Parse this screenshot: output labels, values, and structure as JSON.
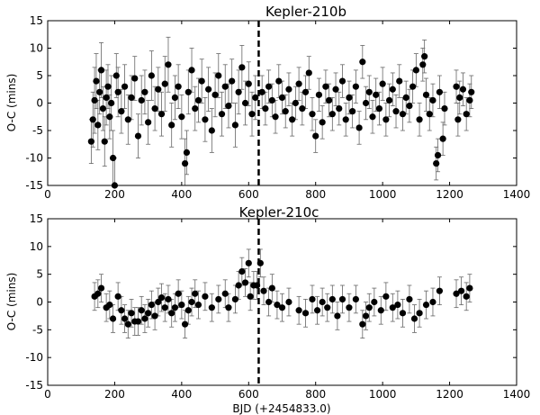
{
  "chart_data": [
    {
      "type": "scatter",
      "title": "Kepler-210b",
      "xlabel": "",
      "ylabel": "O-C (mins)",
      "xlim": [
        0,
        1400
      ],
      "ylim": [
        -15,
        15
      ],
      "x_ticks": [
        "0",
        "200",
        "400",
        "600",
        "800",
        "1000",
        "1200",
        "1400"
      ],
      "y_ticks": [
        "15",
        "10",
        "5",
        "0",
        "-5",
        "-10",
        "-15"
      ],
      "vline_x": 630,
      "points": [
        {
          "x": 130,
          "y": -7.0,
          "err": 4.0
        },
        {
          "x": 135,
          "y": -3.0,
          "err": 5.0
        },
        {
          "x": 140,
          "y": 0.5,
          "err": 6.0
        },
        {
          "x": 145,
          "y": 4.0,
          "err": 5.0
        },
        {
          "x": 150,
          "y": -4.0,
          "err": 4.5
        },
        {
          "x": 155,
          "y": 2.0,
          "err": 4.0
        },
        {
          "x": 160,
          "y": 6.0,
          "err": 5.0
        },
        {
          "x": 165,
          "y": -1.0,
          "err": 4.0
        },
        {
          "x": 170,
          "y": -7.0,
          "err": 4.5
        },
        {
          "x": 175,
          "y": 1.0,
          "err": 5.0
        },
        {
          "x": 180,
          "y": 3.0,
          "err": 4.0
        },
        {
          "x": 185,
          "y": -2.5,
          "err": 4.0
        },
        {
          "x": 190,
          "y": 0.0,
          "err": 5.0
        },
        {
          "x": 195,
          "y": -10.0,
          "err": 5.0
        },
        {
          "x": 200,
          "y": -15.0,
          "err": 5.0
        },
        {
          "x": 205,
          "y": 5.0,
          "err": 4.0
        },
        {
          "x": 210,
          "y": 2.0,
          "err": 4.5
        },
        {
          "x": 220,
          "y": -1.5,
          "err": 4.0
        },
        {
          "x": 230,
          "y": 3.0,
          "err": 4.0
        },
        {
          "x": 240,
          "y": -3.0,
          "err": 4.5
        },
        {
          "x": 250,
          "y": 1.0,
          "err": 4.0
        },
        {
          "x": 260,
          "y": 4.5,
          "err": 4.0
        },
        {
          "x": 270,
          "y": -6.0,
          "err": 4.0
        },
        {
          "x": 280,
          "y": 0.5,
          "err": 4.5
        },
        {
          "x": 290,
          "y": 2.0,
          "err": 4.0
        },
        {
          "x": 300,
          "y": -3.5,
          "err": 4.0
        },
        {
          "x": 310,
          "y": 5.0,
          "err": 4.5
        },
        {
          "x": 320,
          "y": -1.0,
          "err": 4.0
        },
        {
          "x": 330,
          "y": 2.5,
          "err": 4.0
        },
        {
          "x": 340,
          "y": -2.0,
          "err": 4.0
        },
        {
          "x": 350,
          "y": 3.5,
          "err": 5.0
        },
        {
          "x": 360,
          "y": 7.0,
          "err": 5.0
        },
        {
          "x": 370,
          "y": -4.0,
          "err": 4.0
        },
        {
          "x": 380,
          "y": 1.0,
          "err": 4.0
        },
        {
          "x": 390,
          "y": 3.0,
          "err": 4.0
        },
        {
          "x": 400,
          "y": -2.5,
          "err": 4.0
        },
        {
          "x": 410,
          "y": -11.0,
          "err": 4.5
        },
        {
          "x": 415,
          "y": -9.0,
          "err": 4.0
        },
        {
          "x": 420,
          "y": 2.0,
          "err": 4.0
        },
        {
          "x": 430,
          "y": 6.0,
          "err": 4.0
        },
        {
          "x": 440,
          "y": -1.0,
          "err": 4.0
        },
        {
          "x": 450,
          "y": 0.5,
          "err": 4.0
        },
        {
          "x": 460,
          "y": 4.0,
          "err": 4.0
        },
        {
          "x": 470,
          "y": -3.0,
          "err": 4.0
        },
        {
          "x": 480,
          "y": 2.5,
          "err": 4.0
        },
        {
          "x": 490,
          "y": -5.0,
          "err": 4.0
        },
        {
          "x": 500,
          "y": 1.5,
          "err": 4.0
        },
        {
          "x": 510,
          "y": 5.0,
          "err": 4.0
        },
        {
          "x": 520,
          "y": -2.0,
          "err": 4.0
        },
        {
          "x": 530,
          "y": 3.0,
          "err": 4.0
        },
        {
          "x": 540,
          "y": -0.5,
          "err": 4.0
        },
        {
          "x": 550,
          "y": 4.0,
          "err": 4.0
        },
        {
          "x": 560,
          "y": -4.0,
          "err": 4.0
        },
        {
          "x": 570,
          "y": 2.0,
          "err": 4.0
        },
        {
          "x": 580,
          "y": 6.5,
          "err": 4.0
        },
        {
          "x": 590,
          "y": 0.0,
          "err": 4.0
        },
        {
          "x": 600,
          "y": 3.5,
          "err": 4.0
        },
        {
          "x": 610,
          "y": -2.0,
          "err": 4.0
        },
        {
          "x": 620,
          "y": 1.0,
          "err": 4.0
        },
        {
          "x": 640,
          "y": 2.0,
          "err": 3.0
        },
        {
          "x": 650,
          "y": -1.0,
          "err": 3.0
        },
        {
          "x": 660,
          "y": 3.0,
          "err": 3.0
        },
        {
          "x": 670,
          "y": 0.5,
          "err": 3.0
        },
        {
          "x": 680,
          "y": -2.5,
          "err": 3.0
        },
        {
          "x": 690,
          "y": 4.0,
          "err": 3.0
        },
        {
          "x": 700,
          "y": 1.0,
          "err": 3.0
        },
        {
          "x": 710,
          "y": -1.5,
          "err": 3.0
        },
        {
          "x": 720,
          "y": 2.5,
          "err": 3.0
        },
        {
          "x": 730,
          "y": -3.0,
          "err": 3.0
        },
        {
          "x": 740,
          "y": 0.0,
          "err": 3.0
        },
        {
          "x": 750,
          "y": 3.5,
          "err": 3.0
        },
        {
          "x": 760,
          "y": -1.0,
          "err": 3.0
        },
        {
          "x": 770,
          "y": 2.0,
          "err": 3.0
        },
        {
          "x": 780,
          "y": 5.5,
          "err": 3.0
        },
        {
          "x": 790,
          "y": -2.0,
          "err": 3.0
        },
        {
          "x": 800,
          "y": -6.0,
          "err": 3.0
        },
        {
          "x": 810,
          "y": 1.5,
          "err": 3.0
        },
        {
          "x": 820,
          "y": -3.5,
          "err": 3.0
        },
        {
          "x": 830,
          "y": 3.0,
          "err": 3.0
        },
        {
          "x": 840,
          "y": 0.5,
          "err": 3.0
        },
        {
          "x": 850,
          "y": -2.0,
          "err": 3.0
        },
        {
          "x": 860,
          "y": 2.5,
          "err": 3.0
        },
        {
          "x": 870,
          "y": -1.0,
          "err": 3.0
        },
        {
          "x": 880,
          "y": 4.0,
          "err": 3.0
        },
        {
          "x": 890,
          "y": -3.0,
          "err": 3.0
        },
        {
          "x": 900,
          "y": 1.0,
          "err": 3.0
        },
        {
          "x": 910,
          "y": -1.5,
          "err": 3.0
        },
        {
          "x": 920,
          "y": 3.0,
          "err": 3.0
        },
        {
          "x": 930,
          "y": -4.5,
          "err": 3.0
        },
        {
          "x": 940,
          "y": 7.5,
          "err": 3.0
        },
        {
          "x": 950,
          "y": 0.0,
          "err": 3.0
        },
        {
          "x": 960,
          "y": 2.0,
          "err": 3.0
        },
        {
          "x": 970,
          "y": -2.5,
          "err": 3.0
        },
        {
          "x": 980,
          "y": 1.5,
          "err": 3.0
        },
        {
          "x": 990,
          "y": -1.0,
          "err": 3.0
        },
        {
          "x": 1000,
          "y": 3.5,
          "err": 3.0
        },
        {
          "x": 1010,
          "y": -3.0,
          "err": 3.0
        },
        {
          "x": 1020,
          "y": 0.5,
          "err": 3.0
        },
        {
          "x": 1030,
          "y": 2.5,
          "err": 3.0
        },
        {
          "x": 1040,
          "y": -1.5,
          "err": 3.0
        },
        {
          "x": 1050,
          "y": 4.0,
          "err": 3.0
        },
        {
          "x": 1060,
          "y": -2.0,
          "err": 3.0
        },
        {
          "x": 1070,
          "y": 1.0,
          "err": 3.0
        },
        {
          "x": 1080,
          "y": -0.5,
          "err": 3.0
        },
        {
          "x": 1090,
          "y": 3.0,
          "err": 3.0
        },
        {
          "x": 1100,
          "y": 6.0,
          "err": 3.0
        },
        {
          "x": 1110,
          "y": -3.0,
          "err": 3.0
        },
        {
          "x": 1120,
          "y": 7.0,
          "err": 3.0
        },
        {
          "x": 1125,
          "y": 8.5,
          "err": 3.0
        },
        {
          "x": 1130,
          "y": 1.5,
          "err": 3.0
        },
        {
          "x": 1140,
          "y": -2.0,
          "err": 3.0
        },
        {
          "x": 1150,
          "y": 0.5,
          "err": 3.0
        },
        {
          "x": 1160,
          "y": -11.0,
          "err": 3.0
        },
        {
          "x": 1165,
          "y": -9.5,
          "err": 3.0
        },
        {
          "x": 1170,
          "y": 2.0,
          "err": 3.0
        },
        {
          "x": 1180,
          "y": -6.5,
          "err": 3.0
        },
        {
          "x": 1185,
          "y": -1.0,
          "err": 3.0
        },
        {
          "x": 1220,
          "y": 3.0,
          "err": 3.0
        },
        {
          "x": 1225,
          "y": -3.0,
          "err": 3.0
        },
        {
          "x": 1230,
          "y": 1.0,
          "err": 3.0
        },
        {
          "x": 1240,
          "y": 2.5,
          "err": 3.0
        },
        {
          "x": 1250,
          "y": -2.0,
          "err": 3.0
        },
        {
          "x": 1260,
          "y": 0.5,
          "err": 3.0
        },
        {
          "x": 1265,
          "y": 2.0,
          "err": 3.0
        }
      ]
    },
    {
      "type": "scatter",
      "title": "Kepler-210c",
      "xlabel": "BJD (+2454833.0)",
      "ylabel": "O-C (mins)",
      "xlim": [
        0,
        1400
      ],
      "ylim": [
        -15,
        15
      ],
      "x_ticks": [
        "0",
        "200",
        "400",
        "600",
        "800",
        "1000",
        "1200",
        "1400"
      ],
      "y_ticks": [
        "15",
        "10",
        "5",
        "0",
        "-5",
        "-10",
        "-15"
      ],
      "vline_x": 630,
      "points": [
        {
          "x": 140,
          "y": 1.0,
          "err": 2.5
        },
        {
          "x": 150,
          "y": 1.5,
          "err": 2.5
        },
        {
          "x": 160,
          "y": 2.5,
          "err": 2.5
        },
        {
          "x": 175,
          "y": -1.0,
          "err": 2.5
        },
        {
          "x": 185,
          "y": -0.5,
          "err": 2.5
        },
        {
          "x": 195,
          "y": -3.0,
          "err": 2.5
        },
        {
          "x": 210,
          "y": 1.0,
          "err": 2.5
        },
        {
          "x": 220,
          "y": -1.5,
          "err": 2.5
        },
        {
          "x": 230,
          "y": -3.0,
          "err": 2.5
        },
        {
          "x": 240,
          "y": -4.0,
          "err": 2.5
        },
        {
          "x": 250,
          "y": -2.0,
          "err": 2.5
        },
        {
          "x": 260,
          "y": -3.5,
          "err": 2.5
        },
        {
          "x": 270,
          "y": -3.5,
          "err": 2.5
        },
        {
          "x": 280,
          "y": -1.5,
          "err": 2.5
        },
        {
          "x": 290,
          "y": -3.0,
          "err": 2.5
        },
        {
          "x": 300,
          "y": -2.0,
          "err": 2.5
        },
        {
          "x": 310,
          "y": -0.5,
          "err": 2.5
        },
        {
          "x": 320,
          "y": -2.5,
          "err": 2.5
        },
        {
          "x": 330,
          "y": 0.0,
          "err": 2.5
        },
        {
          "x": 340,
          "y": 0.8,
          "err": 2.5
        },
        {
          "x": 350,
          "y": -1.0,
          "err": 2.5
        },
        {
          "x": 360,
          "y": 0.5,
          "err": 2.5
        },
        {
          "x": 370,
          "y": -2.0,
          "err": 2.5
        },
        {
          "x": 380,
          "y": -1.0,
          "err": 2.5
        },
        {
          "x": 390,
          "y": 1.5,
          "err": 2.5
        },
        {
          "x": 400,
          "y": -0.5,
          "err": 2.5
        },
        {
          "x": 410,
          "y": -4.0,
          "err": 2.5
        },
        {
          "x": 420,
          "y": -1.5,
          "err": 2.5
        },
        {
          "x": 430,
          "y": 0.0,
          "err": 2.5
        },
        {
          "x": 440,
          "y": 1.5,
          "err": 2.5
        },
        {
          "x": 450,
          "y": -0.5,
          "err": 2.5
        },
        {
          "x": 470,
          "y": 1.0,
          "err": 2.5
        },
        {
          "x": 490,
          "y": -1.0,
          "err": 2.5
        },
        {
          "x": 510,
          "y": 0.5,
          "err": 2.5
        },
        {
          "x": 530,
          "y": 1.5,
          "err": 2.5
        },
        {
          "x": 540,
          "y": -1.0,
          "err": 2.5
        },
        {
          "x": 560,
          "y": 0.5,
          "err": 2.5
        },
        {
          "x": 570,
          "y": 3.0,
          "err": 2.5
        },
        {
          "x": 580,
          "y": 5.5,
          "err": 2.5
        },
        {
          "x": 590,
          "y": 3.5,
          "err": 2.5
        },
        {
          "x": 600,
          "y": 7.0,
          "err": 2.5
        },
        {
          "x": 605,
          "y": 1.0,
          "err": 2.5
        },
        {
          "x": 615,
          "y": 3.0,
          "err": 2.5
        },
        {
          "x": 625,
          "y": 3.0,
          "err": 2.5
        },
        {
          "x": 635,
          "y": 7.0,
          "err": 2.5
        },
        {
          "x": 645,
          "y": 2.0,
          "err": 2.5
        },
        {
          "x": 660,
          "y": 0.0,
          "err": 2.5
        },
        {
          "x": 670,
          "y": 2.5,
          "err": 2.5
        },
        {
          "x": 685,
          "y": -0.5,
          "err": 2.5
        },
        {
          "x": 700,
          "y": -1.0,
          "err": 2.5
        },
        {
          "x": 720,
          "y": 0.0,
          "err": 2.5
        },
        {
          "x": 750,
          "y": -1.5,
          "err": 2.5
        },
        {
          "x": 770,
          "y": -2.0,
          "err": 2.5
        },
        {
          "x": 790,
          "y": 0.5,
          "err": 2.5
        },
        {
          "x": 805,
          "y": -1.5,
          "err": 2.5
        },
        {
          "x": 820,
          "y": 0.0,
          "err": 2.5
        },
        {
          "x": 835,
          "y": -1.0,
          "err": 2.5
        },
        {
          "x": 850,
          "y": 0.5,
          "err": 2.5
        },
        {
          "x": 865,
          "y": -2.5,
          "err": 2.5
        },
        {
          "x": 880,
          "y": 0.5,
          "err": 2.5
        },
        {
          "x": 900,
          "y": -1.0,
          "err": 2.5
        },
        {
          "x": 920,
          "y": 0.5,
          "err": 2.5
        },
        {
          "x": 940,
          "y": -4.0,
          "err": 2.5
        },
        {
          "x": 950,
          "y": -2.5,
          "err": 2.5
        },
        {
          "x": 960,
          "y": -1.0,
          "err": 2.5
        },
        {
          "x": 975,
          "y": 0.0,
          "err": 2.5
        },
        {
          "x": 995,
          "y": -1.5,
          "err": 2.5
        },
        {
          "x": 1010,
          "y": 1.0,
          "err": 2.5
        },
        {
          "x": 1030,
          "y": -1.0,
          "err": 2.5
        },
        {
          "x": 1045,
          "y": -0.5,
          "err": 2.5
        },
        {
          "x": 1060,
          "y": -2.0,
          "err": 2.5
        },
        {
          "x": 1080,
          "y": 0.5,
          "err": 2.5
        },
        {
          "x": 1095,
          "y": -3.0,
          "err": 2.5
        },
        {
          "x": 1110,
          "y": -2.0,
          "err": 2.5
        },
        {
          "x": 1130,
          "y": -0.5,
          "err": 2.5
        },
        {
          "x": 1150,
          "y": 0.0,
          "err": 2.5
        },
        {
          "x": 1170,
          "y": 2.0,
          "err": 2.5
        },
        {
          "x": 1220,
          "y": 1.5,
          "err": 2.5
        },
        {
          "x": 1235,
          "y": 2.0,
          "err": 2.5
        },
        {
          "x": 1250,
          "y": 1.0,
          "err": 2.5
        },
        {
          "x": 1260,
          "y": 2.5,
          "err": 2.5
        }
      ]
    }
  ]
}
